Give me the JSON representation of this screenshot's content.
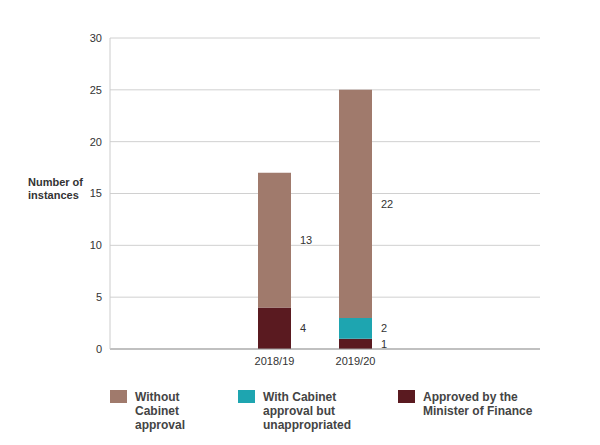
{
  "chart_data": {
    "type": "bar",
    "stacked": true,
    "data_labels": true,
    "grid": true,
    "legend": "bottom",
    "y_label": "Number of instances",
    "categories": [
      "2018/19",
      "2019/20"
    ],
    "ylim": [
      0,
      30
    ],
    "yticks": [
      0,
      5,
      10,
      15,
      20,
      25,
      30
    ],
    "series": [
      {
        "name": "Without Cabinet approval",
        "color": "#a07a6c",
        "values": [
          13,
          22
        ]
      },
      {
        "name": "With Cabinet approval but unappropriated",
        "color": "#1ea5b0",
        "values": [
          0,
          2
        ]
      },
      {
        "name": "Approved by the Minister of Finance",
        "color": "#5a1a20",
        "values": [
          4,
          1
        ]
      }
    ]
  }
}
